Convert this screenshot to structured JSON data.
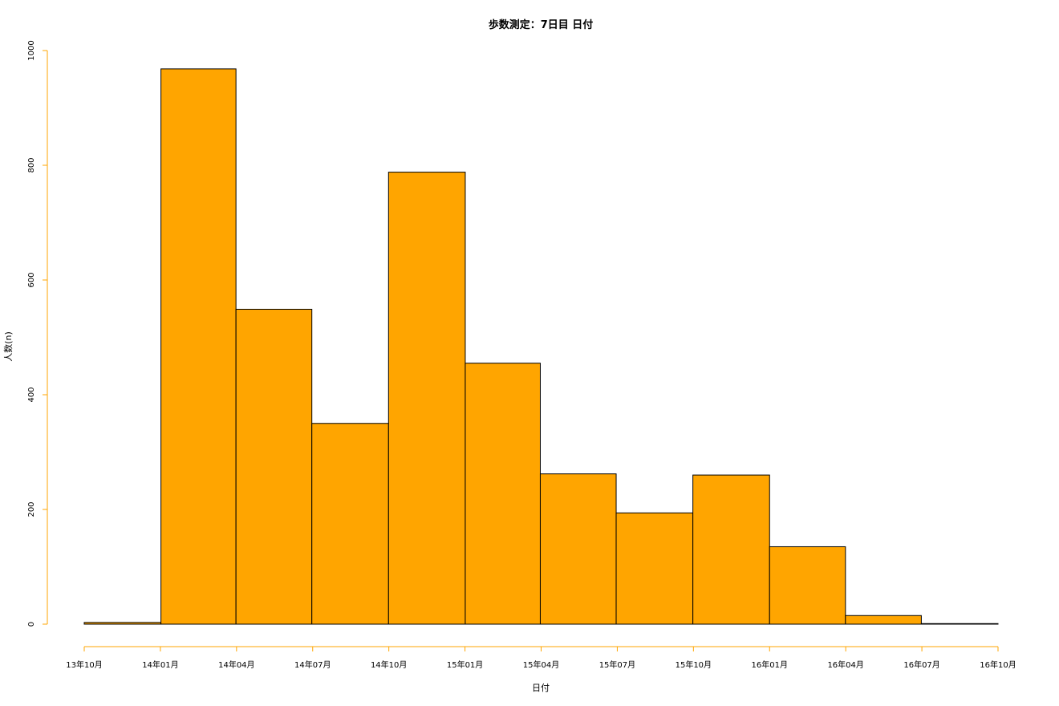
{
  "chart_data": {
    "type": "bar",
    "title": "歩数測定：7日目 日付",
    "xlabel": "日付",
    "ylabel": "人数(n)",
    "x_ticks": [
      "13年10月",
      "14年01月",
      "14年04月",
      "14年07月",
      "14年10月",
      "15年01月",
      "15年04月",
      "15年07月",
      "15年10月",
      "16年01月",
      "16年04月",
      "16年07月",
      "16年10月"
    ],
    "y_ticks": [
      "0",
      "200",
      "400",
      "600",
      "800",
      "1000"
    ],
    "ylim": [
      0,
      1000
    ],
    "bins": [
      {
        "start": "2013-10-01",
        "end": "2014-01-01",
        "value": 3
      },
      {
        "start": "2014-01-01",
        "end": "2014-04-01",
        "value": 968
      },
      {
        "start": "2014-04-01",
        "end": "2014-07-01",
        "value": 549
      },
      {
        "start": "2014-07-01",
        "end": "2014-10-01",
        "value": 350
      },
      {
        "start": "2014-10-01",
        "end": "2015-01-01",
        "value": 788
      },
      {
        "start": "2015-01-01",
        "end": "2015-04-01",
        "value": 455
      },
      {
        "start": "2015-04-01",
        "end": "2015-07-01",
        "value": 262
      },
      {
        "start": "2015-07-01",
        "end": "2015-10-01",
        "value": 194
      },
      {
        "start": "2015-10-01",
        "end": "2016-01-01",
        "value": 260
      },
      {
        "start": "2016-01-01",
        "end": "2016-04-01",
        "value": 135
      },
      {
        "start": "2016-04-01",
        "end": "2016-07-01",
        "value": 15
      },
      {
        "start": "2016-07-01",
        "end": "2016-10-01",
        "value": 1
      }
    ],
    "bar_color": "#FFA500",
    "bar_border_color": "#000000",
    "axis_color": "#FFA500",
    "grid": false
  }
}
